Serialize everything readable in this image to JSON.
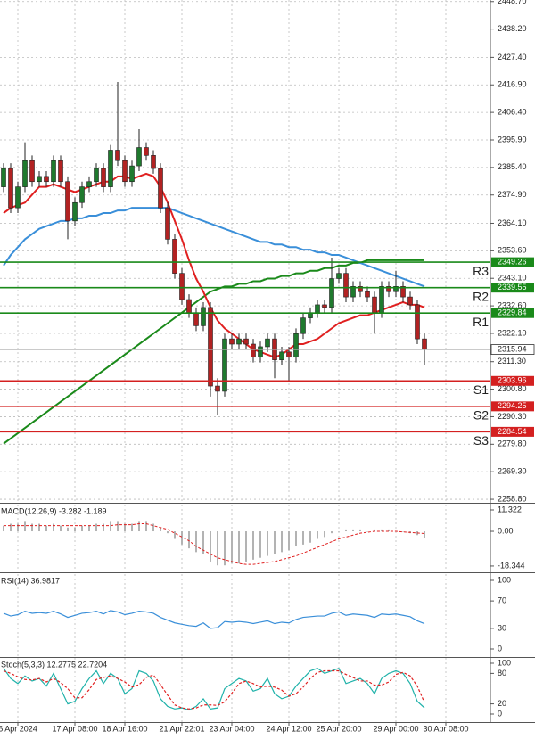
{
  "chart_data": [
    {
      "type": "candlestick",
      "categories": [
        null,
        null,
        "6 Apr 2024",
        null,
        null,
        null,
        null,
        null,
        null,
        null,
        "17 Apr 08:00",
        null,
        null,
        null,
        null,
        null,
        null,
        "18 Apr 16:00",
        null,
        null,
        null,
        null,
        null,
        null,
        null,
        "21 Apr 22:01",
        null,
        null,
        null,
        null,
        null,
        null,
        "23 Apr 04:00",
        null,
        null,
        null,
        null,
        null,
        null,
        null,
        "24 Apr 12:00",
        null,
        null,
        null,
        null,
        null,
        null,
        "25 Apr 20:00",
        null,
        null,
        null,
        null,
        null,
        null,
        null,
        "29 Apr 00:00",
        null,
        null,
        null,
        null,
        null,
        null,
        "30 Apr 08:00"
      ],
      "open": [
        2378,
        2385,
        2370,
        2378,
        2388,
        2380,
        2382,
        2380,
        2388,
        2380,
        2365,
        2372,
        2378,
        2380,
        2385,
        2378,
        2392,
        2388,
        2380,
        2386,
        2393,
        2390,
        2385,
        2370,
        2358,
        2345,
        2335,
        2330,
        2325,
        2332,
        2302,
        2300,
        2320,
        2318,
        2320,
        2318,
        2313,
        2317,
        2320,
        2312,
        2315,
        2313,
        2322,
        2328,
        2330,
        2333,
        2332,
        2343,
        2345,
        2336,
        2340,
        2338,
        2336,
        2330,
        2340,
        2338,
        2340,
        2336,
        2333,
        2320,
        null,
        null,
        null
      ],
      "high": [
        2387,
        2387,
        2380,
        2395,
        2390,
        2384,
        2384,
        2390,
        2390,
        2382,
        2374,
        2380,
        2382,
        2387,
        2387,
        2394,
        2418,
        2390,
        2388,
        2400,
        2395,
        2392,
        2387,
        2372,
        2360,
        2347,
        2337,
        2332,
        2334,
        2334,
        2305,
        2322,
        2322,
        2322,
        2322,
        2320,
        2319,
        2322,
        2322,
        2317,
        2317,
        2324,
        2330,
        2332,
        2335,
        2335,
        2351,
        2347,
        2347,
        2342,
        2342,
        2340,
        2338,
        2342,
        2342,
        2346,
        2342,
        2338,
        2335,
        2322,
        null,
        null,
        null
      ],
      "low": [
        2376,
        2368,
        2368,
        2376,
        2378,
        2378,
        2378,
        2378,
        2378,
        2358,
        2363,
        2370,
        2376,
        2378,
        2376,
        2376,
        2386,
        2378,
        2378,
        2384,
        2388,
        2383,
        2368,
        2356,
        2343,
        2333,
        2328,
        2323,
        2323,
        2298,
        2291,
        2298,
        2316,
        2316,
        2316,
        2311,
        2311,
        2315,
        2305,
        2310,
        2304,
        2311,
        2320,
        2326,
        2328,
        2330,
        2330,
        2341,
        2334,
        2334,
        2336,
        2334,
        2322,
        2328,
        2336,
        2336,
        2334,
        2331,
        2318,
        2310,
        null,
        null,
        null
      ],
      "close": [
        2385,
        2370,
        2378,
        2388,
        2380,
        2382,
        2380,
        2388,
        2380,
        2365,
        2372,
        2378,
        2380,
        2385,
        2378,
        2392,
        2388,
        2380,
        2386,
        2393,
        2390,
        2385,
        2370,
        2358,
        2345,
        2335,
        2330,
        2325,
        2332,
        2302,
        2300,
        2320,
        2318,
        2320,
        2318,
        2313,
        2317,
        2320,
        2312,
        2315,
        2313,
        2322,
        2328,
        2330,
        2333,
        2332,
        2343,
        2345,
        2336,
        2340,
        2338,
        2336,
        2330,
        2340,
        2338,
        2340,
        2336,
        2333,
        2320,
        2315.94,
        null,
        null,
        null
      ],
      "up_color": "#1f7a2e",
      "down_color": "#b22222",
      "lines": [
        {
          "color": "#1a8a1a",
          "values": [
            2280,
            2282,
            2284,
            2286,
            2288,
            2290,
            2292,
            2294,
            2296,
            2298,
            2300,
            2302,
            2304,
            2306,
            2308,
            2310,
            2312,
            2314,
            2316,
            2318,
            2320,
            2322,
            2324,
            2326,
            2328,
            2330,
            2332,
            2334,
            2336,
            2338,
            2339,
            2340,
            2340,
            2341,
            2341,
            2342,
            2342,
            2343,
            2343,
            2344,
            2344,
            2345,
            2345,
            2346,
            2346,
            2347,
            2347,
            2348,
            2348,
            2349,
            2349,
            2350,
            2350,
            2350,
            2350,
            2350,
            2350,
            2350,
            2350,
            2350,
            null,
            null,
            null
          ]
        },
        {
          "color": "#3a8fd9",
          "values": [
            2348,
            2352,
            2355,
            2358,
            2360,
            2362,
            2363,
            2364,
            2365,
            2365,
            2366,
            2366,
            2367,
            2367,
            2368,
            2368,
            2369,
            2369,
            2370,
            2370,
            2370,
            2370,
            2370,
            2370,
            2369,
            2368,
            2367,
            2366,
            2365,
            2364,
            2363,
            2362,
            2361,
            2360,
            2359,
            2358,
            2357,
            2357,
            2356,
            2356,
            2355,
            2355,
            2354,
            2354,
            2353,
            2353,
            2352,
            2352,
            2351,
            2350,
            2349,
            2348,
            2347,
            2346,
            2345,
            2344,
            2343,
            2342,
            2341,
            2340,
            null,
            null,
            null
          ]
        },
        {
          "color": "#e02020",
          "values": [
            2368,
            2370,
            2371,
            2372,
            2375,
            2378,
            2378,
            2379,
            2378,
            2377,
            2376,
            2377,
            2378,
            2379,
            2380,
            2380,
            2382,
            2382,
            2381,
            2382,
            2383,
            2382,
            2378,
            2372,
            2365,
            2358,
            2350,
            2343,
            2338,
            2332,
            2327,
            2324,
            2322,
            2320,
            2318,
            2316,
            2315,
            2314,
            2313,
            2314,
            2316,
            2318,
            2318,
            2319,
            2320,
            2322,
            2324,
            2326,
            2327,
            2328,
            2329,
            2329,
            2330,
            2331,
            2332,
            2333,
            2334,
            2333,
            2333,
            2332,
            null,
            null,
            null
          ]
        }
      ],
      "levels": [
        {
          "label": "R3",
          "value": 2349.26,
          "color": "#1a8a1a"
        },
        {
          "label": "R2",
          "value": 2339.55,
          "color": "#1a8a1a"
        },
        {
          "label": "R1",
          "value": 2329.84,
          "color": "#1a8a1a"
        },
        {
          "label": "S1",
          "value": 2303.96,
          "color": "#d42020"
        },
        {
          "label": "S2",
          "value": 2294.25,
          "color": "#d42020"
        },
        {
          "label": "S3",
          "value": 2284.54,
          "color": "#d42020"
        }
      ],
      "last": 2315.94,
      "ylim": [
        2257.8,
        2449.3
      ],
      "yticks": [
        {
          "value": 2448.7,
          "label": "2448.70"
        },
        {
          "value": 2438.2,
          "label": "2438.20"
        },
        {
          "value": 2427.4,
          "label": "2427.40"
        },
        {
          "value": 2416.9,
          "label": "2416.90"
        },
        {
          "value": 2406.4,
          "label": "2406.40"
        },
        {
          "value": 2395.9,
          "label": "2395.90"
        },
        {
          "value": 2385.4,
          "label": "2385.40"
        },
        {
          "value": 2374.9,
          "label": "2374.90"
        },
        {
          "value": 2364.1,
          "label": "2364.10"
        },
        {
          "value": 2353.6,
          "label": "2353.60"
        },
        {
          "value": 2343.1,
          "label": "2343.10"
        },
        {
          "value": 2332.6,
          "label": "2332.60"
        },
        {
          "value": 2322.1,
          "label": "2322.10"
        },
        {
          "value": 2311.3,
          "label": "2311.30"
        },
        {
          "value": 2300.8,
          "label": "2300.80"
        },
        {
          "value": 2290.3,
          "label": "2290.30"
        },
        {
          "value": 2279.8,
          "label": "2279.80"
        },
        {
          "value": 2269.3,
          "label": "2269.30"
        },
        {
          "value": 2258.8,
          "label": "2258.80"
        }
      ],
      "grid": true
    },
    {
      "type": "macd",
      "title": "MACD(12,26,9) -3.282 -1.189",
      "values": [
        3,
        4,
        4,
        5,
        4,
        4,
        3,
        4,
        3,
        2,
        2,
        3,
        3,
        4,
        4,
        5,
        5,
        4,
        4,
        5,
        5,
        4,
        2,
        -1,
        -4,
        -7,
        -9,
        -11,
        -12,
        -16,
        -18,
        -18,
        -17,
        -17,
        -16,
        -15,
        -14,
        -13,
        -12,
        -11,
        -10,
        -8,
        -7,
        -6,
        -4,
        -3,
        -1,
        0,
        1,
        1,
        1,
        0,
        1,
        1,
        1,
        0,
        0,
        -1,
        -2,
        -3.282
      ],
      "color": "#9a9a9a",
      "signal": [
        3,
        3,
        3,
        3,
        3,
        3,
        3,
        3,
        3,
        3,
        3,
        3,
        3,
        3,
        3,
        3,
        3.5,
        3.5,
        3.5,
        4,
        4,
        3,
        2,
        1,
        -1,
        -3,
        -5,
        -8,
        -10,
        -12,
        -14,
        -15,
        -16,
        -17,
        -17.5,
        -17.5,
        -17,
        -16.5,
        -16,
        -15,
        -14,
        -13,
        -11.5,
        -10,
        -8.5,
        -7,
        -5.5,
        -4,
        -3,
        -2,
        -1,
        -0.5,
        0,
        0,
        0,
        0,
        -0.3,
        -0.6,
        -0.9,
        -1.189
      ],
      "signal_color": "#e02020",
      "ylim": [
        -21.2,
        14.15
      ],
      "yticks": [
        11.322,
        {
          "value": 0,
          "label": "0.00"
        },
        -18.344
      ]
    },
    {
      "type": "line",
      "title": "RSI(14) 36.9817",
      "series": [
        {
          "color": "#3a8fd9",
          "dashed": false,
          "values": [
            52,
            48,
            50,
            55,
            52,
            53,
            52,
            55,
            51,
            46,
            49,
            52,
            53,
            55,
            51,
            56,
            54,
            50,
            52,
            55,
            54,
            52,
            46,
            42,
            38,
            36,
            34,
            33,
            38,
            30,
            31,
            40,
            39,
            40,
            39,
            37,
            39,
            41,
            37,
            39,
            38,
            43,
            46,
            47,
            48,
            48,
            52,
            54,
            49,
            51,
            50,
            49,
            46,
            51,
            50,
            51,
            49,
            47,
            41,
            36.9817
          ]
        }
      ],
      "ylim": [
        -10.4,
        109.1
      ],
      "yticks": [
        100,
        70,
        30,
        0
      ]
    },
    {
      "type": "line",
      "title": "Stoch(5,3,3) 12.2775 22.7204",
      "series": [
        {
          "color": "#20b2aa",
          "dashed": false,
          "values": [
            90,
            70,
            60,
            75,
            65,
            70,
            55,
            80,
            50,
            20,
            25,
            50,
            70,
            85,
            60,
            80,
            70,
            40,
            50,
            85,
            80,
            65,
            30,
            15,
            10,
            12,
            8,
            15,
            30,
            10,
            12,
            50,
            60,
            70,
            65,
            45,
            50,
            70,
            40,
            30,
            35,
            55,
            70,
            85,
            90,
            80,
            85,
            90,
            60,
            65,
            70,
            60,
            40,
            70,
            80,
            85,
            80,
            60,
            25,
            12.2775
          ]
        },
        {
          "color": "#e02020",
          "dashed": true,
          "values": [
            85,
            80,
            73,
            68,
            67,
            70,
            63,
            70,
            62,
            50,
            32,
            32,
            48,
            68,
            72,
            75,
            70,
            63,
            53,
            58,
            72,
            77,
            58,
            37,
            18,
            12,
            10,
            12,
            18,
            18,
            17,
            24,
            41,
            60,
            65,
            60,
            53,
            55,
            53,
            47,
            35,
            40,
            53,
            70,
            82,
            85,
            85,
            85,
            78,
            72,
            65,
            65,
            57,
            57,
            63,
            78,
            82,
            75,
            55,
            22.7204
          ]
        }
      ],
      "ylim": [
        -15.8,
        110.5
      ],
      "yticks": [
        100,
        80,
        20,
        0
      ]
    }
  ]
}
